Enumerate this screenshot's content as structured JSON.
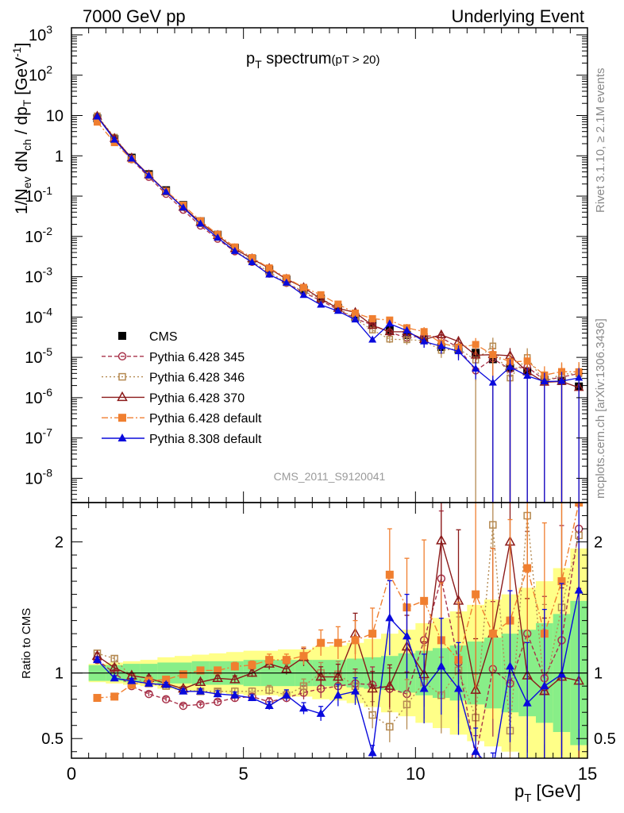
{
  "header": {
    "left": "7000 GeV pp",
    "right": "Underlying Event"
  },
  "side": {
    "rivet": "Rivet 3.1.10, ≥ 2.1M events",
    "mcplots": "mcplots.cern.ch [arXiv:1306.3436]"
  },
  "watermark": "CMS_2011_S9120041",
  "chart_data": {
    "type": "scatter",
    "title": "p_T spectrum",
    "title_main": "p",
    "title_sub": "T",
    "title_rest": " spectrum",
    "title_cut": "(pT > 20)",
    "ylabel_top": "1/N_ev dN_ch / dp_T [GeV^-1]",
    "ylabel_ratio": "Ratio to CMS",
    "xlabel": "p_T [GeV]",
    "xlim": [
      0,
      15
    ],
    "ylim_top": [
      2.5e-09,
      1500
    ],
    "ylim_ratio": [
      0.35,
      2.3
    ],
    "yscale_top": "log",
    "x_ticks": [
      0,
      5,
      10,
      15
    ],
    "y_ticks_top": [
      "10^-8",
      "10^-7",
      "10^-6",
      "10^-5",
      "10^-4",
      "10^-3",
      "10^-2",
      "10^-1",
      "1",
      "10",
      "10^2",
      "10^3"
    ],
    "y_ticks_ratio": [
      "0.5",
      "1",
      "2"
    ],
    "legend_position": "bottom-left",
    "x": [
      0.75,
      1.25,
      1.75,
      2.25,
      2.75,
      3.25,
      3.75,
      4.25,
      4.75,
      5.25,
      5.75,
      6.25,
      6.75,
      7.25,
      7.75,
      8.25,
      8.75,
      9.25,
      9.75,
      10.25,
      10.75,
      11.25,
      11.75,
      12.25,
      12.75,
      13.25,
      13.75,
      14.25,
      14.75
    ],
    "data_band_inner": [
      0.06,
      0.06,
      0.07,
      0.07,
      0.08,
      0.08,
      0.09,
      0.09,
      0.09,
      0.1,
      0.1,
      0.1,
      0.1,
      0.1,
      0.1,
      0.11,
      0.12,
      0.13,
      0.15,
      0.17,
      0.19,
      0.21,
      0.24,
      0.27,
      0.3,
      0.33,
      0.38,
      0.45,
      0.55
    ],
    "data_band_outer": [
      0.07,
      0.08,
      0.09,
      0.1,
      0.12,
      0.13,
      0.14,
      0.15,
      0.16,
      0.17,
      0.17,
      0.18,
      0.18,
      0.2,
      0.21,
      0.23,
      0.26,
      0.3,
      0.33,
      0.38,
      0.42,
      0.47,
      0.52,
      0.56,
      0.6,
      0.65,
      0.7,
      0.8,
      0.95
    ],
    "series": [
      {
        "name": "CMS",
        "color": "#000000",
        "marker": "square-filled",
        "dash": "none",
        "values": [
          8.5,
          2.6,
          0.9,
          0.35,
          0.14,
          0.06,
          0.024,
          0.011,
          0.0052,
          0.0028,
          0.0015,
          0.00085,
          0.00048,
          0.00029,
          0.00017,
          0.0001,
          7e-05,
          4.8e-05,
          3.6e-05,
          2.8e-05,
          1.8e-05,
          1.6e-05,
          1.3e-05,
          9e-06,
          5.5e-06,
          4.5e-06,
          2.8e-06,
          2.6e-06,
          1.9e-06
        ],
        "errors": [
          0.1,
          0.1,
          0.1,
          0.1,
          0.1,
          0.1,
          0.1,
          0.1,
          0.1,
          0.1,
          0.1,
          0.1,
          0.1,
          0.1,
          0.1,
          0.1,
          0.12,
          0.12,
          0.12,
          0.15,
          0.15,
          0.2,
          0.2,
          0.2,
          0.25,
          0.25,
          0.3,
          0.3,
          0.3
        ]
      },
      {
        "name": "Pythia 6.428 345",
        "color": "#a8324a",
        "marker": "circle-open",
        "dash": "5,3",
        "ratio": [
          1.1,
          1.0,
          0.9,
          0.84,
          0.8,
          0.75,
          0.76,
          0.78,
          0.81,
          0.82,
          0.78,
          0.81,
          0.85,
          0.88,
          0.9,
          0.92,
          0.91,
          0.88,
          0.84,
          1.25,
          1.72,
          1.08,
          0.36,
          1.03,
          0.92,
          1.3,
          0.96,
          1.25,
          2.1
        ],
        "ratio_err": [
          0.02,
          0.02,
          0.02,
          0.02,
          0.02,
          0.02,
          0.02,
          0.02,
          0.03,
          0.03,
          0.04,
          0.04,
          0.06,
          0.08,
          0.1,
          0.12,
          0.15,
          0.18,
          0.2,
          0.25,
          0.3,
          0.35,
          0.45,
          0.5,
          0.55,
          0.6,
          0.65,
          0.7,
          0.75
        ]
      },
      {
        "name": "Pythia 6.428 346",
        "color": "#b58a52",
        "marker": "square-open",
        "dash": "2,3",
        "ratio": [
          1.15,
          1.11,
          0.97,
          0.92,
          0.9,
          0.87,
          0.86,
          0.86,
          0.86,
          0.86,
          0.87,
          0.83,
          0.9,
          1.0,
          0.99,
          0.9,
          0.68,
          0.59,
          0.76,
          0.93,
          0.83,
          1.02,
          0.66,
          2.13,
          0.56,
          2.2,
          0.87,
          1.5,
          2.05
        ],
        "ratio_err": [
          0.02,
          0.02,
          0.02,
          0.02,
          0.02,
          0.02,
          0.02,
          0.02,
          0.03,
          0.03,
          0.04,
          0.04,
          0.06,
          0.08,
          0.1,
          0.12,
          0.15,
          0.2,
          0.25,
          0.3,
          0.35,
          0.4,
          0.5,
          0.6,
          0.65,
          0.7,
          0.75,
          0.8,
          0.85
        ]
      },
      {
        "name": "Pythia 6.428 370",
        "color": "#8b1a1a",
        "marker": "triangle-open",
        "dash": "none",
        "ratio": [
          1.13,
          1.04,
          0.98,
          0.96,
          0.92,
          0.88,
          0.93,
          0.96,
          0.95,
          1.0,
          1.07,
          1.03,
          1.12,
          0.97,
          0.97,
          1.3,
          0.88,
          0.9,
          1.2,
          0.99,
          2.01,
          1.55,
          0.87,
          1.3,
          2.0,
          0.98,
          0.86,
          0.97,
          0.94
        ],
        "ratio_err": [
          0.02,
          0.02,
          0.02,
          0.02,
          0.02,
          0.02,
          0.02,
          0.02,
          0.03,
          0.03,
          0.04,
          0.04,
          0.06,
          0.08,
          0.1,
          0.12,
          0.15,
          0.18,
          0.2,
          0.25,
          0.3,
          0.35,
          0.45,
          0.5,
          0.55,
          0.6,
          0.65,
          0.7,
          0.75
        ]
      },
      {
        "name": "Pythia 6.428 default",
        "color": "#f07f30",
        "marker": "square-filled",
        "dash": "8,3,2,3",
        "ratio": [
          0.81,
          0.82,
          0.91,
          0.94,
          0.95,
          0.99,
          1.02,
          1.02,
          1.05,
          1.06,
          1.1,
          1.1,
          1.13,
          1.23,
          1.23,
          1.25,
          1.3,
          1.75,
          1.5,
          1.55,
          1.25,
          1.1,
          1.6,
          1.3,
          1.4,
          1.8,
          1.3,
          1.7,
          2.3
        ],
        "ratio_err": [
          0.02,
          0.02,
          0.02,
          0.02,
          0.02,
          0.02,
          0.02,
          0.02,
          0.03,
          0.03,
          0.04,
          0.04,
          0.06,
          0.08,
          0.1,
          0.12,
          0.15,
          0.2,
          0.25,
          0.3,
          0.35,
          0.4,
          0.45,
          0.5,
          0.55,
          0.6,
          0.65,
          0.7,
          0.75
        ]
      },
      {
        "name": "Pythia 8.308 default",
        "color": "#0a0adc",
        "marker": "triangle-filled",
        "dash": "none",
        "ratio": [
          1.1,
          0.96,
          0.94,
          0.92,
          0.91,
          0.86,
          0.86,
          0.84,
          0.83,
          0.81,
          0.75,
          0.83,
          0.73,
          0.69,
          0.83,
          0.86,
          0.39,
          1.42,
          1.28,
          0.88,
          1.05,
          0.88,
          0.4,
          0.26,
          1.05,
          0.77,
          0.9,
          0.99,
          1.63
        ],
        "ratio_err": [
          0.02,
          0.02,
          0.02,
          0.02,
          0.02,
          0.02,
          0.02,
          0.03,
          0.03,
          0.03,
          0.04,
          0.05,
          0.06,
          0.08,
          0.1,
          0.12,
          0.15,
          0.2,
          0.25,
          0.3,
          0.35,
          0.4,
          0.45,
          0.5,
          0.55,
          0.6,
          0.65,
          0.7,
          0.75
        ]
      }
    ]
  }
}
